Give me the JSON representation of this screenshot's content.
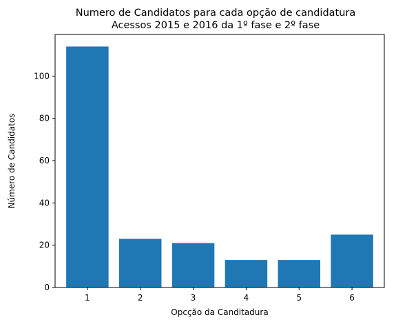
{
  "chart_data": {
    "type": "bar",
    "title": "Numero de Candidatos para cada opção de candidatura",
    "subtitle": "Acessos 2015 e 2016 da 1º fase e 2º fase",
    "xlabel": "Opcção da Canditadura",
    "ylabel": "Número de Candidatos",
    "categories": [
      "1",
      "2",
      "3",
      "4",
      "5",
      "6"
    ],
    "values": [
      114,
      23,
      21,
      13,
      13,
      25
    ],
    "ylim": [
      0,
      119.7
    ],
    "yticks": [
      0,
      20,
      40,
      60,
      80,
      100
    ],
    "grid": false,
    "colors": {
      "bar": "#1f77b4"
    }
  }
}
